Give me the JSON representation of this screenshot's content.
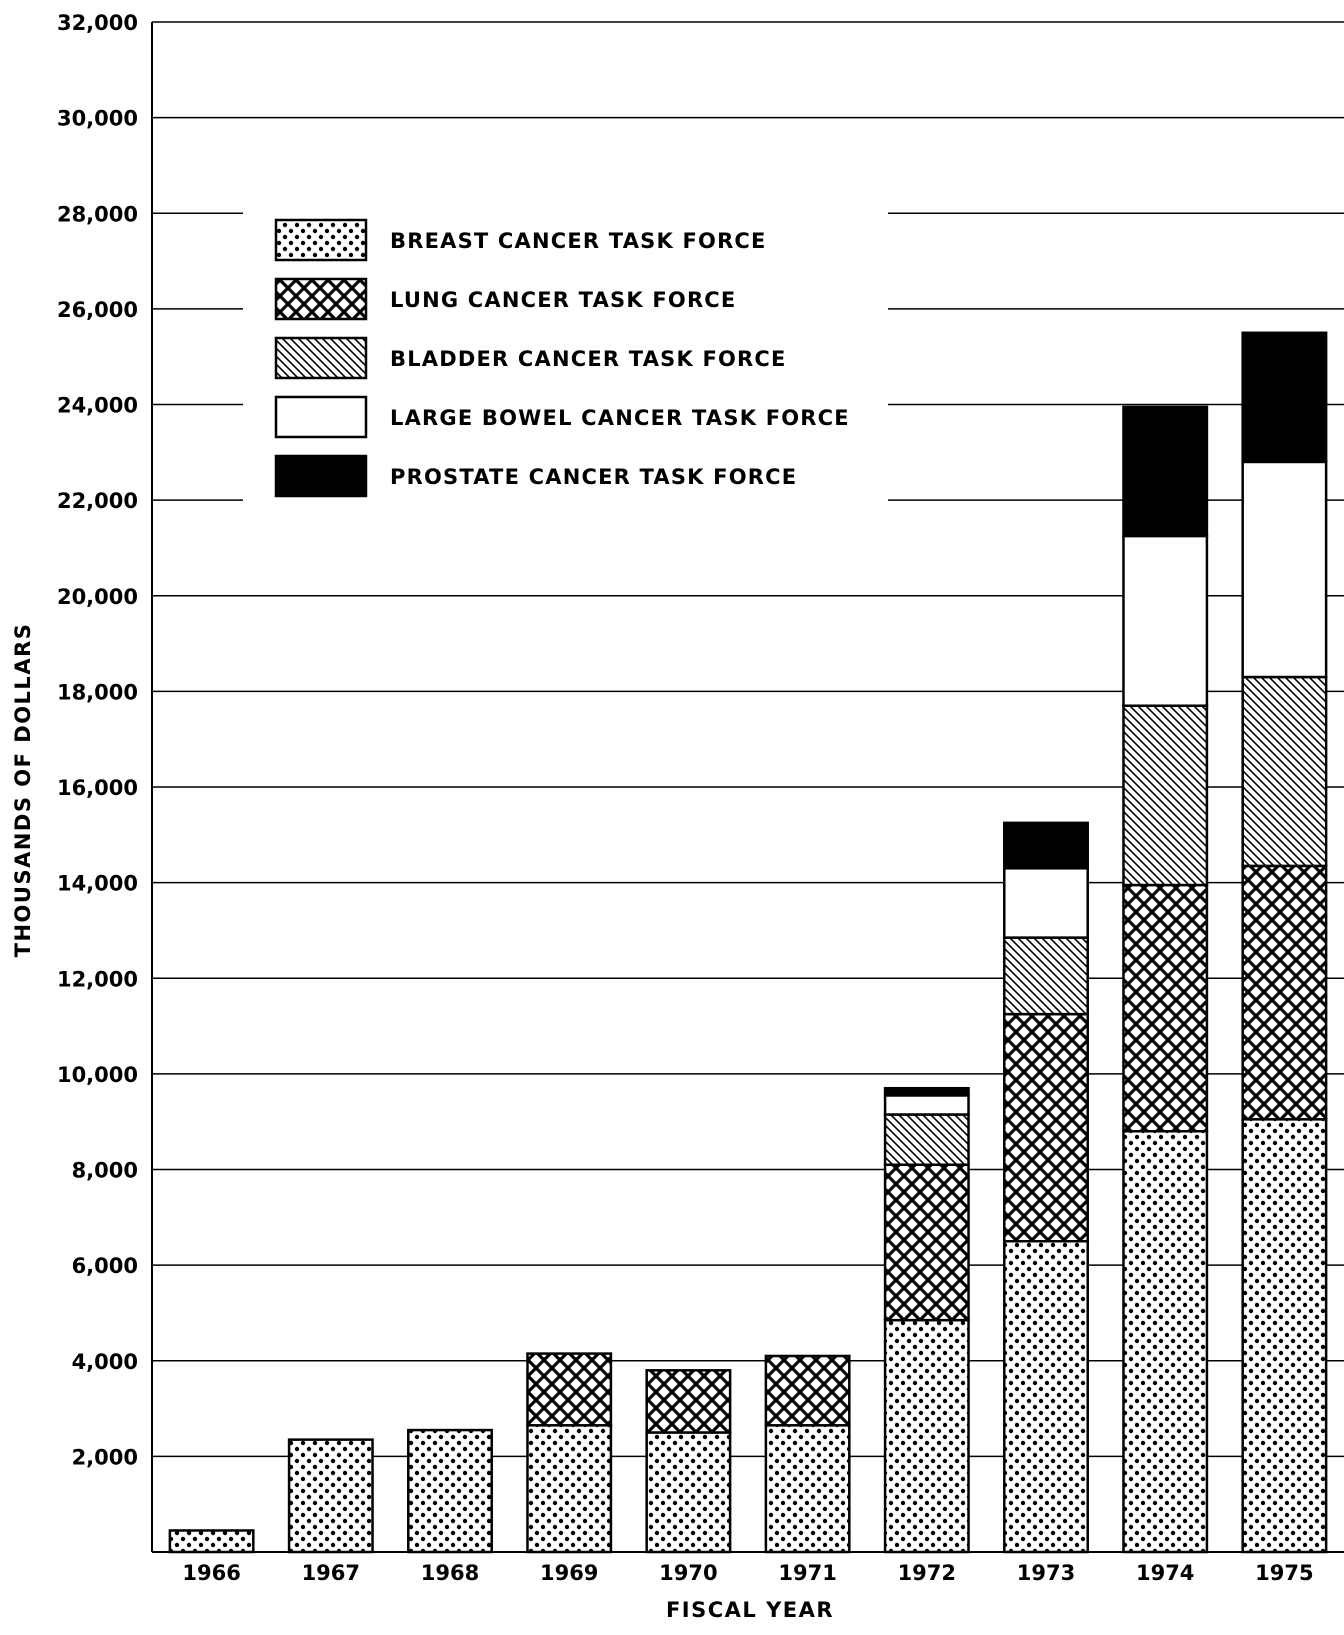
{
  "chart_data": {
    "type": "bar",
    "stacked": true,
    "xlabel": "FISCAL YEAR",
    "ylabel": "THOUSANDS OF DOLLARS",
    "ylim": [
      0,
      32000
    ],
    "yticks": [
      2000,
      4000,
      6000,
      8000,
      10000,
      12000,
      14000,
      16000,
      18000,
      20000,
      22000,
      24000,
      26000,
      28000,
      30000,
      32000
    ],
    "ytick_labels": [
      "2,000",
      "4,000",
      "6,000",
      "8,000",
      "10,000",
      "12,000",
      "14,000",
      "16,000",
      "18,000",
      "20,000",
      "22,000",
      "24,000",
      "26,000",
      "28,000",
      "30,000",
      "32,000"
    ],
    "grid": true,
    "legend_position": "top-left",
    "categories": [
      "1966",
      "1967",
      "1968",
      "1969",
      "1970",
      "1971",
      "1972",
      "1973",
      "1974",
      "1975"
    ],
    "series": [
      {
        "name": "BREAST CANCER TASK FORCE",
        "pattern": "dots",
        "values": [
          450,
          2350,
          2550,
          2650,
          2500,
          2650,
          4850,
          6500,
          8800,
          9050
        ]
      },
      {
        "name": "LUNG CANCER TASK FORCE",
        "pattern": "crosshatch",
        "values": [
          0,
          0,
          0,
          1500,
          1300,
          1450,
          3250,
          4750,
          5150,
          5300
        ]
      },
      {
        "name": "BLADDER CANCER TASK FORCE",
        "pattern": "diagonal",
        "values": [
          0,
          0,
          0,
          0,
          0,
          0,
          1050,
          1600,
          3750,
          3950
        ]
      },
      {
        "name": "LARGE BOWEL CANCER TASK FORCE",
        "pattern": "white",
        "values": [
          0,
          0,
          0,
          0,
          0,
          0,
          400,
          1450,
          3550,
          4500
        ]
      },
      {
        "name": "PROSTATE CANCER TASK FORCE",
        "pattern": "black",
        "values": [
          0,
          0,
          0,
          0,
          0,
          0,
          150,
          950,
          2700,
          2700
        ]
      }
    ]
  },
  "colors": {
    "ink": "#000000",
    "paper": "#ffffff"
  }
}
